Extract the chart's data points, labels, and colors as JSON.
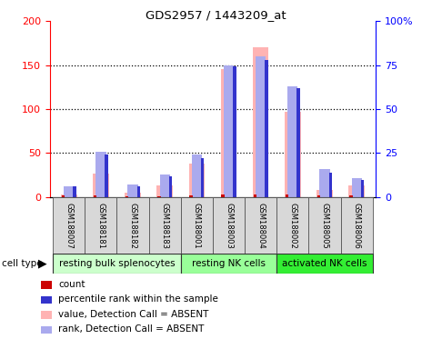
{
  "title": "GDS2957 / 1443209_at",
  "samples": [
    "GSM188007",
    "GSM188181",
    "GSM188182",
    "GSM188183",
    "GSM188001",
    "GSM188003",
    "GSM188004",
    "GSM188002",
    "GSM188005",
    "GSM188006"
  ],
  "cell_type_labels": [
    "resting bulk splenocytes",
    "resting NK cells",
    "activated NK cells"
  ],
  "cell_type_starts": [
    0,
    4,
    7
  ],
  "cell_type_ends": [
    4,
    7,
    10
  ],
  "cell_type_colors": [
    "#ccffcc",
    "#99ff99",
    "#33ee33"
  ],
  "pink_bars": [
    3,
    27,
    5,
    13,
    38,
    145,
    170,
    97,
    8,
    13
  ],
  "blue_rank_bars_left": [
    12,
    52,
    14,
    26,
    48,
    150,
    160,
    126,
    32,
    22
  ],
  "red_count_bars": [
    2,
    2,
    1,
    1,
    2,
    3,
    3,
    3,
    2,
    2
  ],
  "blue_pct_bars_left": [
    12,
    48,
    12,
    24,
    44,
    148,
    156,
    124,
    28,
    20
  ],
  "left_ylim": [
    0,
    200
  ],
  "right_ylim": [
    0,
    100
  ],
  "left_yticks": [
    0,
    50,
    100,
    150,
    200
  ],
  "right_yticks": [
    0,
    25,
    50,
    75,
    100
  ],
  "right_yticklabels": [
    "0",
    "25",
    "50",
    "75",
    "100%"
  ],
  "pink_color": "#ffb3b3",
  "blue_rank_color": "#aaaaee",
  "red_color": "#cc0000",
  "blue_pct_color": "#3333cc",
  "legend_labels": [
    "count",
    "percentile rank within the sample",
    "value, Detection Call = ABSENT",
    "rank, Detection Call = ABSENT"
  ],
  "legend_colors": [
    "#cc0000",
    "#3333cc",
    "#ffb3b3",
    "#aaaaee"
  ]
}
